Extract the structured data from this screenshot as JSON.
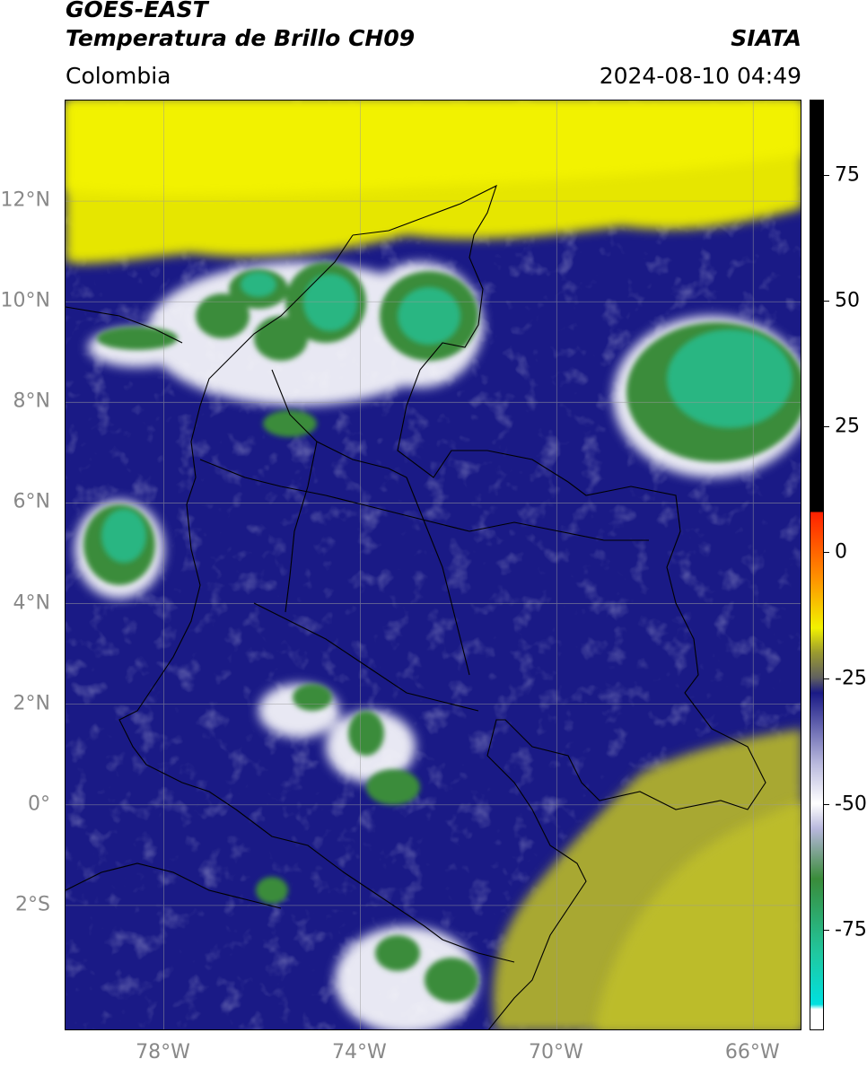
{
  "header": {
    "title_line1": "GOES-EAST",
    "title_line2": "Temperatura de Brillo CH09",
    "agency": "SIATA",
    "region": "Colombia",
    "datetime": "2024-08-10 04:49"
  },
  "map": {
    "latitude_labels": [
      "12°N",
      "10°N",
      "8°N",
      "6°N",
      "4°N",
      "2°N",
      "0°",
      "2°S"
    ],
    "longitude_labels": [
      "78°W",
      "74°W",
      "70°W",
      "66°W"
    ],
    "lat_range": [
      -4.5,
      14.0
    ],
    "lon_range": [
      -80.0,
      -65.0
    ],
    "gridlines": true
  },
  "colorbar": {
    "tick_labels": [
      "75",
      "50",
      "25",
      "0",
      "-25",
      "-50",
      "-75"
    ],
    "range": [
      -95,
      90
    ],
    "colors": {
      "black": "#000000",
      "red": "#ff2000",
      "orange": "#ff9000",
      "yellow": "#f2f200",
      "olive": "#9a9a30",
      "gray": "#606060",
      "navy": "#1a1a86",
      "lavender": "#b8b8dd",
      "white": "#ffffff",
      "green": "#3a8c3a",
      "teal": "#20c8a0",
      "cyan": "#00e0e0"
    }
  }
}
